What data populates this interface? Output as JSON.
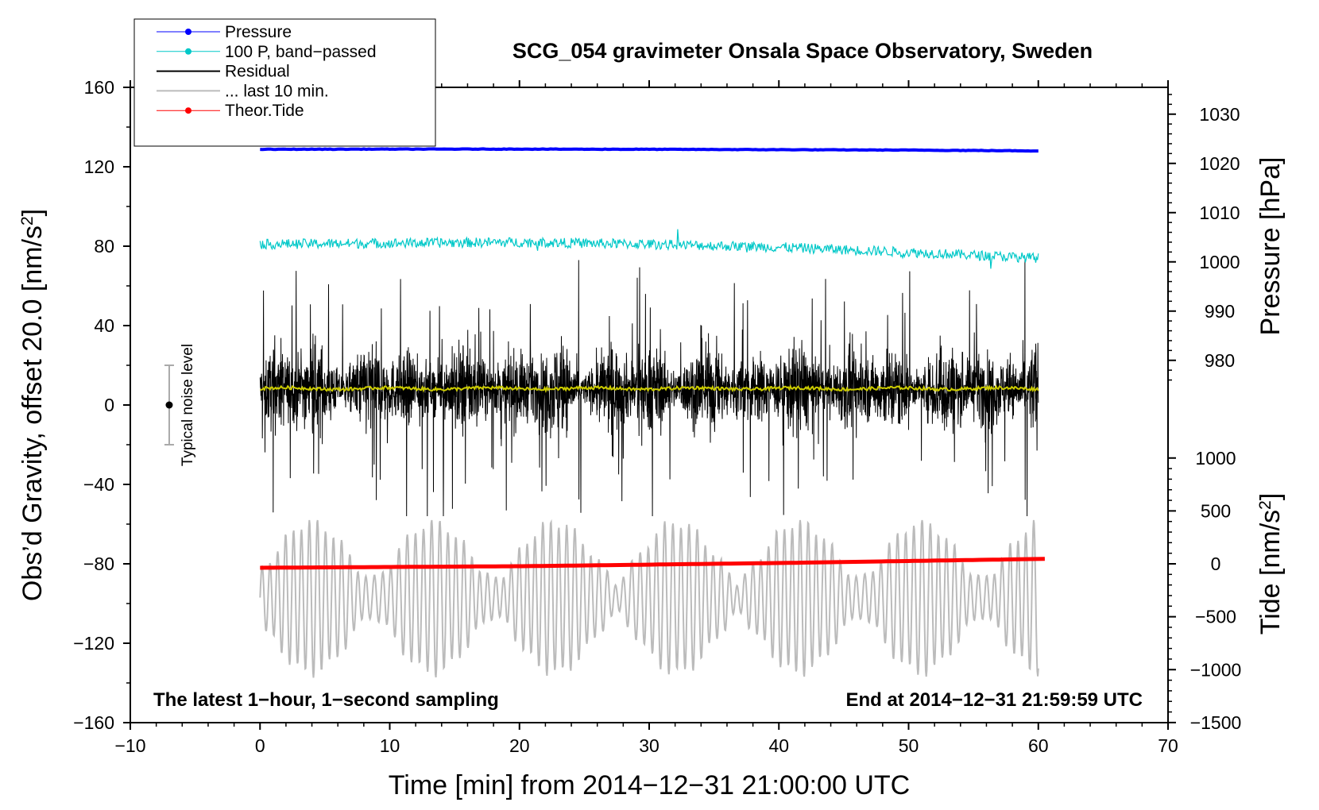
{
  "chart_data": {
    "type": "line",
    "title": "SCG_054 gravimeter Onsala Space Observatory, Sweden",
    "xlabel": "Time [min] from 2014−12−31 21:00:00 UTC",
    "ylabel_left": "Obs’d Gravity, offset 20.0 [nm/s²]",
    "ylabel_left_base": "Obs’d Gravity, offset 20.0 [nm/s",
    "ylabel_pressure": "Pressure [hPa]",
    "ylabel_tide_base": "Tide [nm/s",
    "ylabel_suffix": "]",
    "ylabel_sup": "2",
    "xlim": [
      -10,
      70
    ],
    "ylim": [
      -160,
      160
    ],
    "x_ticks": [
      -10,
      0,
      10,
      20,
      30,
      40,
      50,
      60,
      70
    ],
    "x_tick_labels": [
      "−10",
      "0",
      "10",
      "20",
      "30",
      "40",
      "50",
      "60",
      "70"
    ],
    "y_ticks": [
      -160,
      -120,
      -80,
      -40,
      0,
      40,
      80,
      120,
      160
    ],
    "y_tick_labels": [
      "−160",
      "−120",
      "−80",
      "−40",
      "0",
      "40",
      "80",
      "120",
      "160"
    ],
    "pressure_axis": {
      "ticks": [
        980,
        990,
        1000,
        1010,
        1020,
        1030
      ],
      "tick_labels": [
        "980",
        "990",
        "1000",
        "1010",
        "1020",
        "1030"
      ],
      "gravity_at_980": 22.5,
      "gravity_per_hpa": 2.48
    },
    "tide_axis": {
      "ticks": [
        -1500,
        -1000,
        -500,
        0,
        500,
        1000
      ],
      "tick_labels": [
        "−1500",
        "−1000",
        "−500",
        "0",
        "500",
        "1000"
      ],
      "gravity_at_0": -80,
      "gravity_per_unit": 0.0533
    },
    "series": [
      {
        "name": "Pressure",
        "color": "#0000ff",
        "style": "line-with-dots",
        "points": [
          [
            0,
            128.8
          ],
          [
            10,
            128.9
          ],
          [
            20,
            128.9
          ],
          [
            30,
            128.8
          ],
          [
            40,
            128.6
          ],
          [
            50,
            128.4
          ],
          [
            60,
            128.0
          ]
        ]
      },
      {
        "name": "100 P, band−passed",
        "color": "#00c8c8",
        "style": "line-with-dots",
        "mean_points": [
          [
            0,
            81
          ],
          [
            10,
            81.5
          ],
          [
            20,
            82
          ],
          [
            30,
            81
          ],
          [
            40,
            79.5
          ],
          [
            50,
            77
          ],
          [
            60,
            74
          ]
        ],
        "noise_amplitude": 2.5
      },
      {
        "name": "Residual",
        "color": "#000000",
        "style": "line",
        "center": 8,
        "range": [
          -56,
          73
        ]
      },
      {
        "name": "... last 10 min.",
        "color": "#bbbbbb",
        "style": "line",
        "center": -97,
        "range": [
          -140,
          -58
        ]
      },
      {
        "name": "Theor.Tide",
        "color": "#ff0000",
        "style": "line-with-dots",
        "points": [
          [
            0,
            -82.0
          ],
          [
            20,
            -81.2
          ],
          [
            40,
            -79.6
          ],
          [
            60.5,
            -77.5
          ]
        ]
      },
      {
        "name": "Residual mean",
        "color": "#cccc00",
        "style": "line",
        "center": 8.3,
        "legend": false
      }
    ],
    "noise_bar": {
      "label": "Typical noise level",
      "x": -7,
      "center": 0,
      "low": -20,
      "high": 20
    },
    "notes": {
      "left": "The latest 1−hour, 1−second sampling",
      "right": "End at 2014−12−31 21:59:59 UTC"
    }
  }
}
